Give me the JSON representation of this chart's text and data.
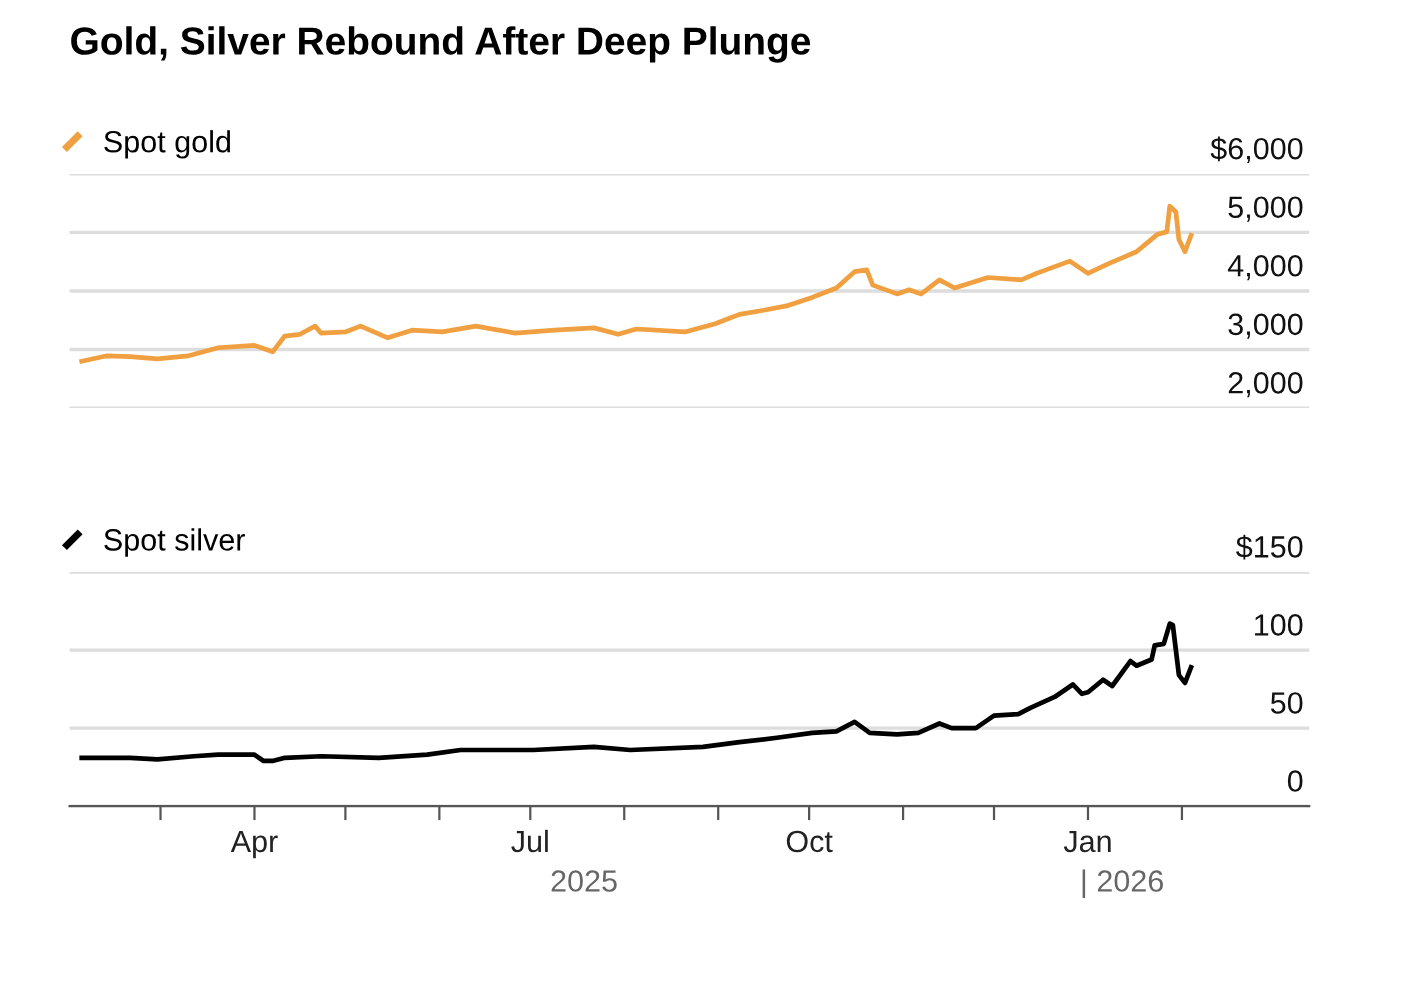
{
  "chart_data": [
    {
      "type": "line",
      "title": "Gold, Silver Rebound After Deep Plunge",
      "legend": "top left",
      "grid": "y",
      "tick_labels": "y",
      "xlim": [
        "2025-01-30",
        "2026-03-15"
      ],
      "ylim": [
        2000,
        6000
      ],
      "yticks": [
        {
          "value": 2000,
          "label": "2,000"
        },
        {
          "value": 3000,
          "label": "3,000"
        },
        {
          "value": 4000,
          "label": "4,000"
        },
        {
          "value": 5000,
          "label": "5,000"
        },
        {
          "value": 6000,
          "label": "$6,000"
        }
      ],
      "series": [
        {
          "name": "Spot gold",
          "color": "#f0a040",
          "x": [
            "2025-02-03",
            "2025-02-11",
            "2025-02-19",
            "2025-02-28",
            "2025-03-10",
            "2025-03-20",
            "2025-04-01",
            "2025-04-07",
            "2025-04-11",
            "2025-04-16",
            "2025-04-21",
            "2025-04-23",
            "2025-05-01",
            "2025-05-06",
            "2025-05-15",
            "2025-05-23",
            "2025-06-02",
            "2025-06-13",
            "2025-06-26",
            "2025-07-09",
            "2025-07-22",
            "2025-07-30",
            "2025-08-05",
            "2025-08-21",
            "2025-08-31",
            "2025-09-08",
            "2025-09-16",
            "2025-09-24",
            "2025-10-02",
            "2025-10-10",
            "2025-10-16",
            "2025-10-20",
            "2025-10-22",
            "2025-10-30",
            "2025-11-03",
            "2025-11-07",
            "2025-11-13",
            "2025-11-18",
            "2025-11-29",
            "2025-12-10",
            "2025-12-15",
            "2025-12-26",
            "2026-01-01",
            "2026-01-08",
            "2026-01-17",
            "2026-01-24",
            "2026-01-27",
            "2026-01-28",
            "2026-01-30",
            "2026-01-31",
            "2026-02-02",
            "2026-02-04"
          ],
          "values": [
            2800,
            2890,
            2880,
            2840,
            2890,
            3030,
            3070,
            2960,
            3230,
            3260,
            3400,
            3280,
            3300,
            3400,
            3200,
            3330,
            3300,
            3400,
            3280,
            3330,
            3370,
            3260,
            3350,
            3300,
            3440,
            3600,
            3670,
            3750,
            3890,
            4050,
            4330,
            4360,
            4100,
            3950,
            4020,
            3950,
            4190,
            4050,
            4230,
            4190,
            4300,
            4510,
            4300,
            4470,
            4670,
            4970,
            5010,
            5450,
            5350,
            4880,
            4670,
            4950
          ]
        }
      ]
    },
    {
      "type": "line",
      "legend": "top left",
      "grid": "y",
      "xlim": [
        "2025-01-30",
        "2026-03-15"
      ],
      "ylim": [
        0,
        150
      ],
      "xticks": [
        {
          "value": "2025-03-01",
          "label": null
        },
        {
          "value": "2025-04-01",
          "label": "Apr"
        },
        {
          "value": "2025-05-01",
          "label": null
        },
        {
          "value": "2025-06-01",
          "label": null
        },
        {
          "value": "2025-07-01",
          "label": "Jul"
        },
        {
          "value": "2025-08-01",
          "label": null
        },
        {
          "value": "2025-09-01",
          "label": null
        },
        {
          "value": "2025-10-01",
          "label": "Oct"
        },
        {
          "value": "2025-11-01",
          "label": null
        },
        {
          "value": "2025-12-01",
          "label": null
        },
        {
          "value": "2026-01-01",
          "label": "Jan"
        },
        {
          "value": "2026-02-01",
          "label": null
        }
      ],
      "yticks": [
        0,
        50,
        100,
        {
          "value": 150,
          "label": "$150"
        }
      ],
      "annotations": [
        "2025",
        "| 2026"
      ],
      "series": [
        {
          "name": "Spot silver",
          "color": "#000000",
          "x": [
            "2025-02-03",
            "2025-02-19",
            "2025-02-28",
            "2025-03-12",
            "2025-03-20",
            "2025-04-01",
            "2025-04-04",
            "2025-04-07",
            "2025-04-11",
            "2025-04-23",
            "2025-05-12",
            "2025-05-28",
            "2025-06-08",
            "2025-07-02",
            "2025-07-22",
            "2025-08-03",
            "2025-08-27",
            "2025-09-08",
            "2025-09-21",
            "2025-10-02",
            "2025-10-10",
            "2025-10-16",
            "2025-10-21",
            "2025-10-30",
            "2025-11-06",
            "2025-11-13",
            "2025-11-17",
            "2025-11-25",
            "2025-12-01",
            "2025-12-09",
            "2025-12-13",
            "2025-12-21",
            "2025-12-27",
            "2025-12-30",
            "2026-01-01",
            "2026-01-06",
            "2026-01-09",
            "2026-01-15",
            "2026-01-17",
            "2026-01-22",
            "2026-01-23",
            "2026-01-26",
            "2026-01-28",
            "2026-01-29",
            "2026-01-31",
            "2026-02-02",
            "2026-02-04"
          ],
          "values": [
            31,
            31,
            30,
            32,
            33,
            33,
            29,
            29,
            31,
            32,
            31,
            33,
            36,
            36,
            38,
            36,
            38,
            41,
            44,
            47,
            48,
            54,
            47,
            46,
            47,
            53,
            50,
            50,
            58,
            59,
            63,
            70,
            78,
            72,
            73,
            81,
            77,
            93,
            90,
            94,
            103,
            104,
            117,
            116,
            84,
            79,
            89
          ]
        }
      ]
    }
  ]
}
